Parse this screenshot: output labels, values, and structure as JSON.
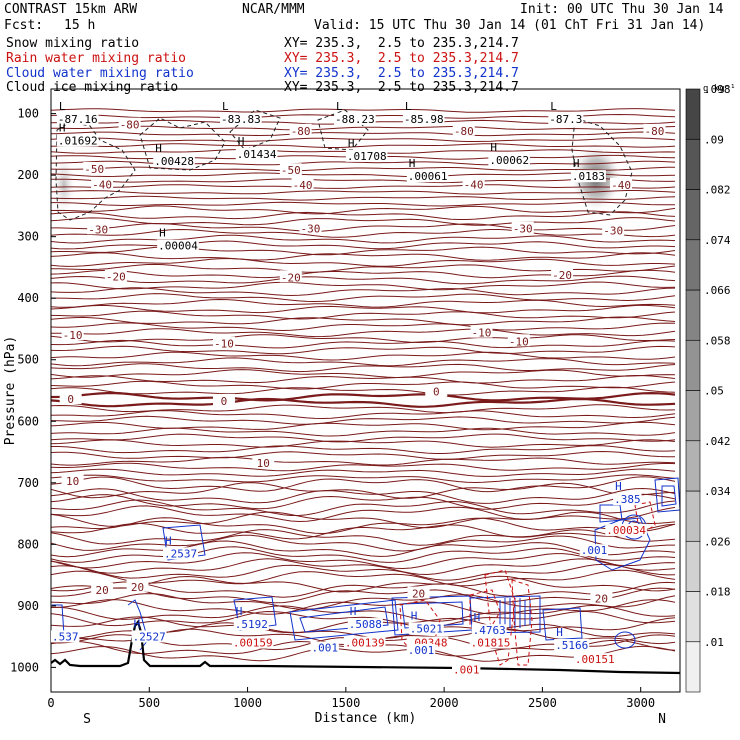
{
  "header": {
    "model": "CONTRAST 15km ARW",
    "org": "NCAR/MMM",
    "init": "Init: 00 UTC Thu 30 Jan 14",
    "fcst_label": "Fcst:",
    "fcst_value": "15 h",
    "valid": "Valid: 15 UTC Thu 30 Jan 14 (01 ChT Fri 31 Jan 14)"
  },
  "legend": [
    {
      "name": "Snow mixing ratio",
      "xy": "XY= 235.3,  2.5 to 235.3,214.7",
      "color": "#000000"
    },
    {
      "name": "Rain water mixing ratio",
      "xy": "XY= 235.3,  2.5 to 235.3,214.7",
      "color": "#cc1111"
    },
    {
      "name": "Cloud water mixing ratio",
      "xy": "XY= 235.3,  2.5 to 235.3,214.7",
      "color": "#1133cc"
    },
    {
      "name": "Cloud ice mixing ratio",
      "xy": "XY= 235.3,  2.5 to 235.3,214.7",
      "color": "#000000"
    }
  ],
  "chart_data": {
    "type": "cross-section contour",
    "xlabel": "Distance (km)",
    "ylabel": "Pressure (hPa)",
    "xlim": [
      0,
      3200
    ],
    "ylim": [
      1040,
      60
    ],
    "x_ticks": [
      0,
      500,
      1000,
      1500,
      2000,
      2500,
      3000
    ],
    "y_ticks": [
      100,
      200,
      300,
      400,
      500,
      600,
      700,
      800,
      900,
      1000
    ],
    "endpoint_labels": {
      "left": "S",
      "right": "N"
    },
    "colorbar": {
      "unit": "g kg⁻¹",
      "levels": [
        0.01,
        0.018,
        0.026,
        0.034,
        0.042,
        0.05,
        0.058,
        0.066,
        0.074,
        0.082,
        0.09,
        0.098
      ],
      "labels": [
        ".01",
        ".018",
        ".026",
        ".034",
        ".042",
        ".05",
        ".058",
        ".066",
        ".074",
        ".082",
        ".09",
        ".098"
      ]
    },
    "temperature_contours": {
      "interval_C": 10,
      "color": "#7a1a1a",
      "labels": [
        {
          "value": -80,
          "text": "-80",
          "x": 400,
          "p": 118
        },
        {
          "value": -80,
          "text": "-80",
          "x": 1270,
          "p": 128
        },
        {
          "value": -80,
          "text": "-80",
          "x": 2100,
          "p": 128
        },
        {
          "value": -80,
          "text": "-80",
          "x": 3070,
          "p": 128
        },
        {
          "value": -50,
          "text": "-50",
          "x": 220,
          "p": 190
        },
        {
          "value": -50,
          "text": "-50",
          "x": 1220,
          "p": 192
        },
        {
          "value": -40,
          "text": "-40",
          "x": 260,
          "p": 215
        },
        {
          "value": -40,
          "text": "-40",
          "x": 1280,
          "p": 216
        },
        {
          "value": -40,
          "text": "-40",
          "x": 2150,
          "p": 215
        },
        {
          "value": -40,
          "text": "-40",
          "x": 2900,
          "p": 216
        },
        {
          "value": -30,
          "text": "-30",
          "x": 240,
          "p": 288
        },
        {
          "value": -30,
          "text": "-30",
          "x": 1320,
          "p": 287
        },
        {
          "value": -30,
          "text": "-30",
          "x": 2400,
          "p": 287
        },
        {
          "value": -30,
          "text": "-30",
          "x": 2860,
          "p": 290
        },
        {
          "value": -20,
          "text": "-20",
          "x": 330,
          "p": 365
        },
        {
          "value": -20,
          "text": "-20",
          "x": 1220,
          "p": 366
        },
        {
          "value": -20,
          "text": "-20",
          "x": 2600,
          "p": 362
        },
        {
          "value": -10,
          "text": "-10",
          "x": 110,
          "p": 460
        },
        {
          "value": -10,
          "text": "-10",
          "x": 880,
          "p": 474
        },
        {
          "value": -10,
          "text": "-10",
          "x": 2190,
          "p": 456
        },
        {
          "value": -10,
          "text": "-10",
          "x": 2380,
          "p": 470
        },
        {
          "value": 0,
          "text": "0",
          "x": 100,
          "p": 564
        },
        {
          "value": 0,
          "text": "0",
          "x": 880,
          "p": 567
        },
        {
          "value": 0,
          "text": "0",
          "x": 1960,
          "p": 552
        },
        {
          "value": 10,
          "text": "10",
          "x": 110,
          "p": 697
        },
        {
          "value": 10,
          "text": "10",
          "x": 1080,
          "p": 668
        },
        {
          "value": 20,
          "text": "20",
          "x": 260,
          "p": 874
        },
        {
          "value": 20,
          "text": "20",
          "x": 440,
          "p": 869
        },
        {
          "value": 20,
          "text": "20",
          "x": 1870,
          "p": 880
        },
        {
          "value": 20,
          "text": "20",
          "x": 2800,
          "p": 888
        }
      ]
    },
    "extrema_labels": [
      {
        "kind": "L",
        "value": "-87.16",
        "x": 30,
        "p": 107,
        "color": "#000000"
      },
      {
        "kind": "H",
        "value": ".01692",
        "x": 30,
        "p": 142,
        "color": "#000000"
      },
      {
        "kind": "H",
        "value": ".00428",
        "x": 520,
        "p": 175,
        "color": "#000000"
      },
      {
        "kind": "L",
        "value": "-83.83",
        "x": 860,
        "p": 107,
        "color": "#000000"
      },
      {
        "kind": "H",
        "value": ".01434",
        "x": 940,
        "p": 164,
        "color": "#000000"
      },
      {
        "kind": "L",
        "value": "-88.23",
        "x": 1440,
        "p": 107,
        "color": "#000000"
      },
      {
        "kind": "H",
        "value": ".01708",
        "x": 1500,
        "p": 167,
        "color": "#000000"
      },
      {
        "kind": "L",
        "value": "-85.98",
        "x": 1790,
        "p": 107,
        "color": "#000000"
      },
      {
        "kind": "H",
        "value": ".00061",
        "x": 1810,
        "p": 200,
        "color": "#000000"
      },
      {
        "kind": "H",
        "value": ".00062",
        "x": 2225,
        "p": 174,
        "color": "#000000"
      },
      {
        "kind": "L",
        "value": "-87.3",
        "x": 2530,
        "p": 107,
        "color": "#000000"
      },
      {
        "kind": "H",
        "value": ".0183",
        "x": 2645,
        "p": 200,
        "color": "#000000"
      },
      {
        "kind": "H",
        "value": ".00004",
        "x": 540,
        "p": 313,
        "color": "#000000"
      },
      {
        "kind": "H",
        "value": ".2537",
        "x": 570,
        "p": 813,
        "color": "#1133cc"
      },
      {
        "kind": "H",
        "value": ".2527",
        "x": 410,
        "p": 948,
        "color": "#1133cc"
      },
      {
        "kind": "",
        "value": ".537",
        "x": 0,
        "p": 948,
        "color": "#1133cc"
      },
      {
        "kind": "H",
        "value": ".5192",
        "x": 930,
        "p": 928,
        "color": "#1133cc"
      },
      {
        "kind": "",
        "value": ".00159",
        "x": 920,
        "p": 958,
        "color": "#cc1111"
      },
      {
        "kind": "",
        "value": ".001",
        "x": 1320,
        "p": 966,
        "color": "#1133cc"
      },
      {
        "kind": "H",
        "value": ".5088",
        "x": 1510,
        "p": 928,
        "color": "#1133cc"
      },
      {
        "kind": "",
        "value": ".00139",
        "x": 1490,
        "p": 958,
        "color": "#cc1111"
      },
      {
        "kind": "H",
        "value": ".5021",
        "x": 1820,
        "p": 935,
        "color": "#1133cc"
      },
      {
        "kind": "",
        "value": ".00348",
        "x": 1810,
        "p": 958,
        "color": "#cc1111"
      },
      {
        "kind": "",
        "value": ".001",
        "x": 1810,
        "p": 970,
        "color": "#1133cc"
      },
      {
        "kind": "H",
        "value": ".4763",
        "x": 2140,
        "p": 938,
        "color": "#1133cc"
      },
      {
        "kind": "",
        "value": ".01815",
        "x": 2130,
        "p": 958,
        "color": "#cc1111"
      },
      {
        "kind": "H",
        "value": ".5166",
        "x": 2560,
        "p": 962,
        "color": "#1133cc"
      },
      {
        "kind": "",
        "value": ".00151",
        "x": 2660,
        "p": 985,
        "color": "#cc1111"
      },
      {
        "kind": "",
        "value": ".001",
        "x": 2040,
        "p": 1002,
        "color": "#cc1111"
      },
      {
        "kind": "H",
        "value": ".385",
        "x": 2860,
        "p": 725,
        "color": "#1133cc"
      },
      {
        "kind": "",
        "value": ".00034",
        "x": 2820,
        "p": 775,
        "color": "#cc1111"
      },
      {
        "kind": "",
        "value": ".001",
        "x": 2690,
        "p": 808,
        "color": "#1133cc"
      }
    ]
  }
}
